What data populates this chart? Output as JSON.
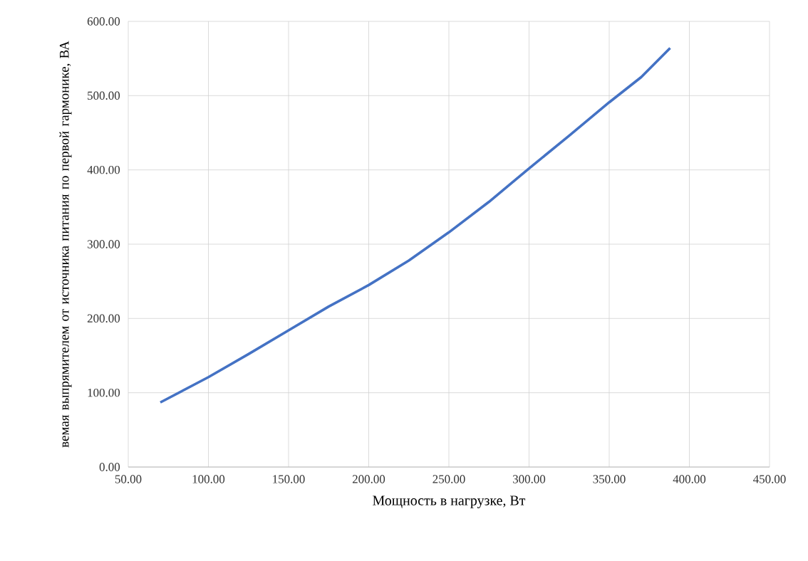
{
  "chart_data": {
    "type": "line",
    "xlabel": "Мощность в нагрузке, Вт",
    "ylabel": "вемая выпрямителем от источника питания по первой гармонике, ВА",
    "x": [
      70,
      100,
      125,
      150,
      175,
      200,
      225,
      250,
      275,
      300,
      325,
      350,
      370,
      388
    ],
    "series": [
      {
        "color": "#4472c4",
        "values": [
          87,
          121,
          152,
          184,
          216,
          245,
          278,
          316,
          357,
          402,
          446,
          491,
          525,
          564
        ]
      }
    ],
    "xlim": [
      50,
      450
    ],
    "ylim": [
      0,
      600
    ],
    "xticks": [
      {
        "value": 50,
        "label": "50.00"
      },
      {
        "value": 100,
        "label": "100.00"
      },
      {
        "value": 150,
        "label": "150.00"
      },
      {
        "value": 200,
        "label": "200.00"
      },
      {
        "value": 250,
        "label": "250.00"
      },
      {
        "value": 300,
        "label": "300.00"
      },
      {
        "value": 350,
        "label": "350.00"
      },
      {
        "value": 400,
        "label": "400.00"
      },
      {
        "value": 450,
        "label": "450.00"
      }
    ],
    "yticks": [
      {
        "value": 0,
        "label": "0.00"
      },
      {
        "value": 100,
        "label": "100.00"
      },
      {
        "value": 200,
        "label": "200.00"
      },
      {
        "value": 300,
        "label": "300.00"
      },
      {
        "value": 400,
        "label": "400.00"
      },
      {
        "value": 500,
        "label": "500.00"
      },
      {
        "value": 600,
        "label": "600.00"
      }
    ],
    "grid": true,
    "marker": "none",
    "line_style": "solid"
  }
}
